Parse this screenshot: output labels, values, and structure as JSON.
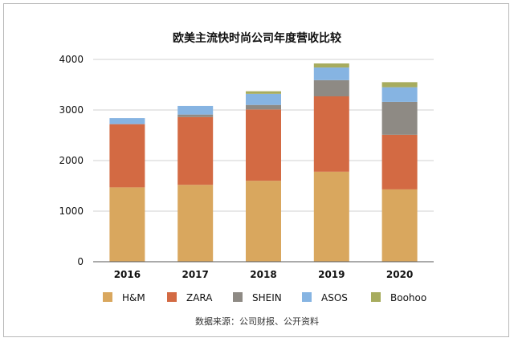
{
  "chart_data": {
    "type": "bar",
    "stacked": true,
    "title": "欧美主流快时尚公司年度营收比较",
    "source_note": "数据来源：公司财报、公开资料",
    "categories": [
      "2016",
      "2017",
      "2018",
      "2019",
      "2020"
    ],
    "ylim": [
      0,
      4000
    ],
    "yticks": [
      0,
      1000,
      2000,
      3000,
      4000
    ],
    "grid": true,
    "legend_position": "bottom",
    "series": [
      {
        "name": "H&M",
        "color": "#D9A75E",
        "values": [
          1470,
          1520,
          1600,
          1780,
          1430
        ]
      },
      {
        "name": "ZARA",
        "color": "#D36A43",
        "values": [
          1250,
          1340,
          1410,
          1490,
          1080
        ]
      },
      {
        "name": "SHEIN",
        "color": "#8E8A84",
        "values": [
          0,
          50,
          90,
          320,
          650
        ]
      },
      {
        "name": "ASOS",
        "color": "#86B4E2",
        "values": [
          120,
          170,
          220,
          250,
          290
        ]
      },
      {
        "name": "Boohoo",
        "color": "#A7AC5E",
        "values": [
          0,
          0,
          50,
          80,
          100
        ]
      }
    ]
  }
}
